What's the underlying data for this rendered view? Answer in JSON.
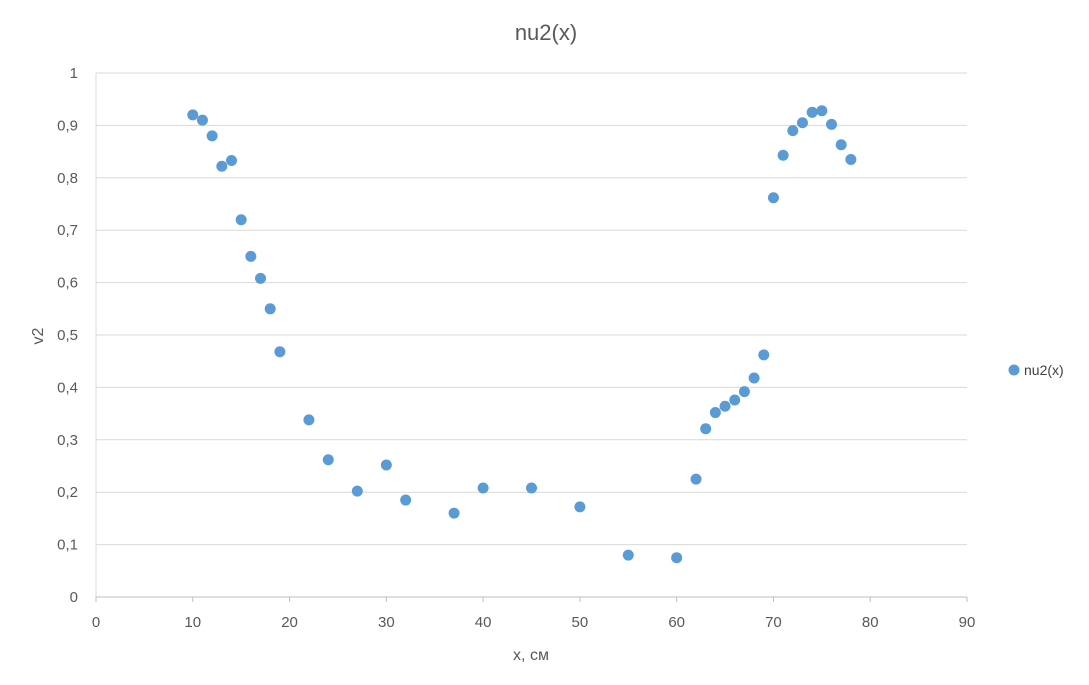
{
  "chart_data": {
    "type": "scatter",
    "title": "nu2(x)",
    "xlabel": "x, см",
    "ylabel": "v2",
    "xlim": [
      0,
      90
    ],
    "ylim": [
      0,
      1
    ],
    "x_ticks": [
      "0",
      "10",
      "20",
      "30",
      "40",
      "50",
      "60",
      "70",
      "80",
      "90"
    ],
    "y_ticks": [
      "0",
      "0,1",
      "0,2",
      "0,3",
      "0,4",
      "0,5",
      "0,6",
      "0,7",
      "0,8",
      "0,9",
      "1"
    ],
    "grid": "horizontal",
    "legend_position": "right",
    "color": "#5b9bd5",
    "series": [
      {
        "name": "nu2(x)",
        "points": [
          [
            10,
            0.92
          ],
          [
            11,
            0.91
          ],
          [
            12,
            0.88
          ],
          [
            13,
            0.822
          ],
          [
            14,
            0.833
          ],
          [
            15,
            0.72
          ],
          [
            16,
            0.65
          ],
          [
            17,
            0.608
          ],
          [
            18,
            0.55
          ],
          [
            19,
            0.468
          ],
          [
            22,
            0.338
          ],
          [
            24,
            0.262
          ],
          [
            27,
            0.202
          ],
          [
            30,
            0.252
          ],
          [
            32,
            0.185
          ],
          [
            37,
            0.16
          ],
          [
            40,
            0.208
          ],
          [
            45,
            0.208
          ],
          [
            50,
            0.172
          ],
          [
            55,
            0.08
          ],
          [
            60,
            0.075
          ],
          [
            62,
            0.225
          ],
          [
            63,
            0.321
          ],
          [
            64,
            0.352
          ],
          [
            65,
            0.364
          ],
          [
            66,
            0.376
          ],
          [
            67,
            0.392
          ],
          [
            68,
            0.418
          ],
          [
            69,
            0.462
          ],
          [
            70,
            0.762
          ],
          [
            71,
            0.843
          ],
          [
            72,
            0.89
          ],
          [
            73,
            0.905
          ],
          [
            74,
            0.925
          ],
          [
            75,
            0.928
          ],
          [
            76,
            0.902
          ],
          [
            77,
            0.863
          ],
          [
            78,
            0.835
          ]
        ]
      }
    ]
  }
}
